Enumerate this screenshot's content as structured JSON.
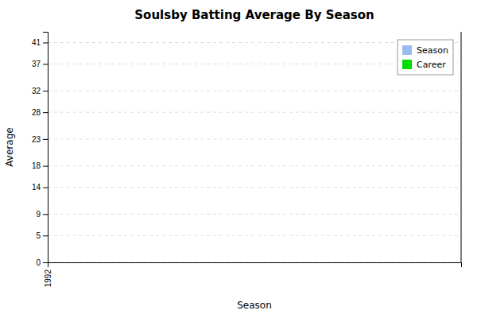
{
  "chart_data": {
    "type": "bar",
    "title": "Soulsby Batting Average By Season",
    "xlabel": "Season",
    "ylabel": "Average",
    "series": [
      {
        "name": "Season",
        "color": "#99bbee",
        "values": []
      },
      {
        "name": "Career",
        "color": "#00dd00",
        "values": []
      }
    ],
    "xlim": [
      1992,
      2002
    ],
    "xticks": [
      1992
    ],
    "ylim": [
      0,
      43
    ],
    "yticks": [
      0,
      5,
      9,
      14,
      18,
      23,
      28,
      32,
      37,
      41
    ],
    "grid": true,
    "legend": "upper right"
  }
}
